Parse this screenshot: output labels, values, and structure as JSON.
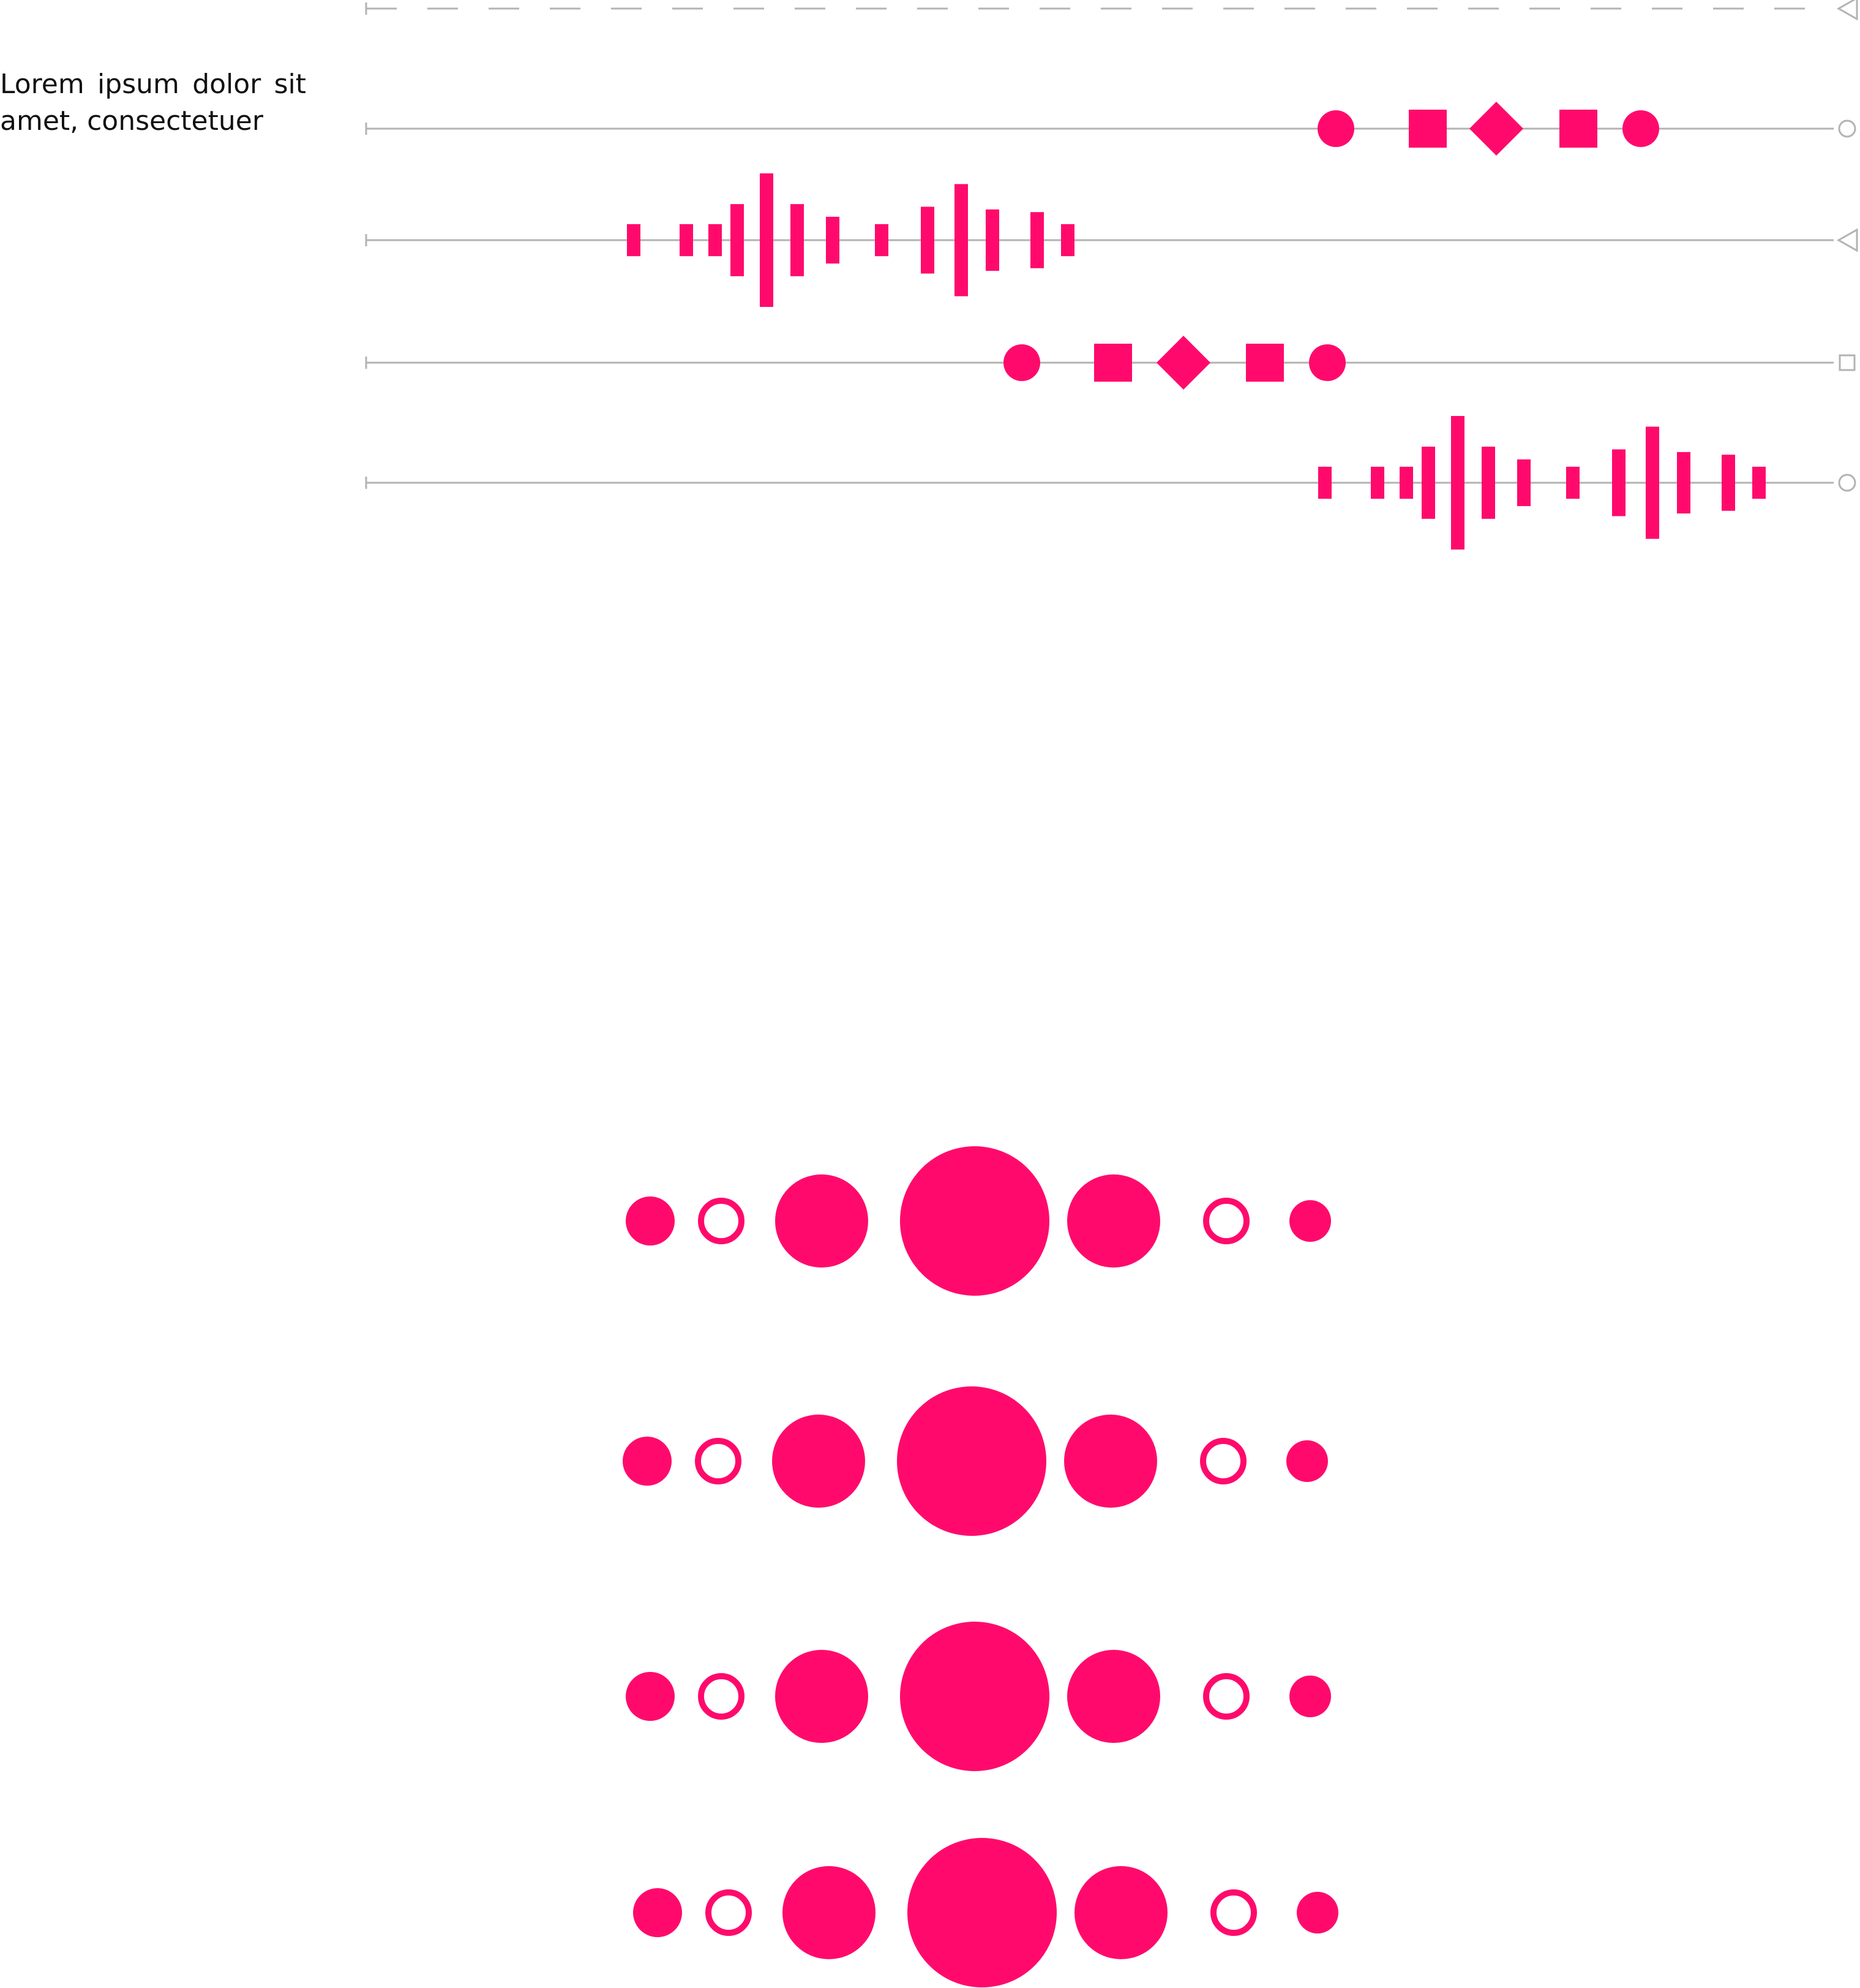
{
  "caption": {
    "line1": "Lorem  ipsum  dolor  sit",
    "line2": "amet, consectetuer"
  },
  "colors": {
    "accent": "#ff0a6c",
    "track": "#b3b3b3",
    "text": "#111111",
    "background": "#ffffff"
  },
  "tracks": [
    {
      "id": "dashed-guide",
      "style": "dashed",
      "end_marker": "triangle",
      "markers": "none"
    },
    {
      "id": "track-1",
      "style": "solid",
      "end_marker": "circle",
      "markers": "shape-sequence"
    },
    {
      "id": "track-2",
      "style": "solid",
      "end_marker": "triangle",
      "markers": "bar-waveform"
    },
    {
      "id": "track-3",
      "style": "solid",
      "end_marker": "square",
      "markers": "shape-sequence"
    },
    {
      "id": "track-4",
      "style": "solid",
      "end_marker": "circle",
      "markers": "bar-waveform"
    }
  ],
  "shape_sequence": [
    "circle",
    "square",
    "diamond",
    "square",
    "circle"
  ],
  "waveform_levels": [
    0.24,
    0.24,
    0.24,
    0.54,
    1.0,
    0.54,
    0.35,
    0.24,
    0.5,
    0.84,
    0.46,
    0.42,
    0.24
  ],
  "circle_grid": {
    "rows": 4,
    "pattern": [
      {
        "fill": "solid",
        "size": "small"
      },
      {
        "fill": "outline",
        "size": "small"
      },
      {
        "fill": "solid",
        "size": "medium"
      },
      {
        "fill": "solid",
        "size": "large"
      },
      {
        "fill": "solid",
        "size": "medium"
      },
      {
        "fill": "outline",
        "size": "small"
      },
      {
        "fill": "solid",
        "size": "small"
      }
    ]
  }
}
